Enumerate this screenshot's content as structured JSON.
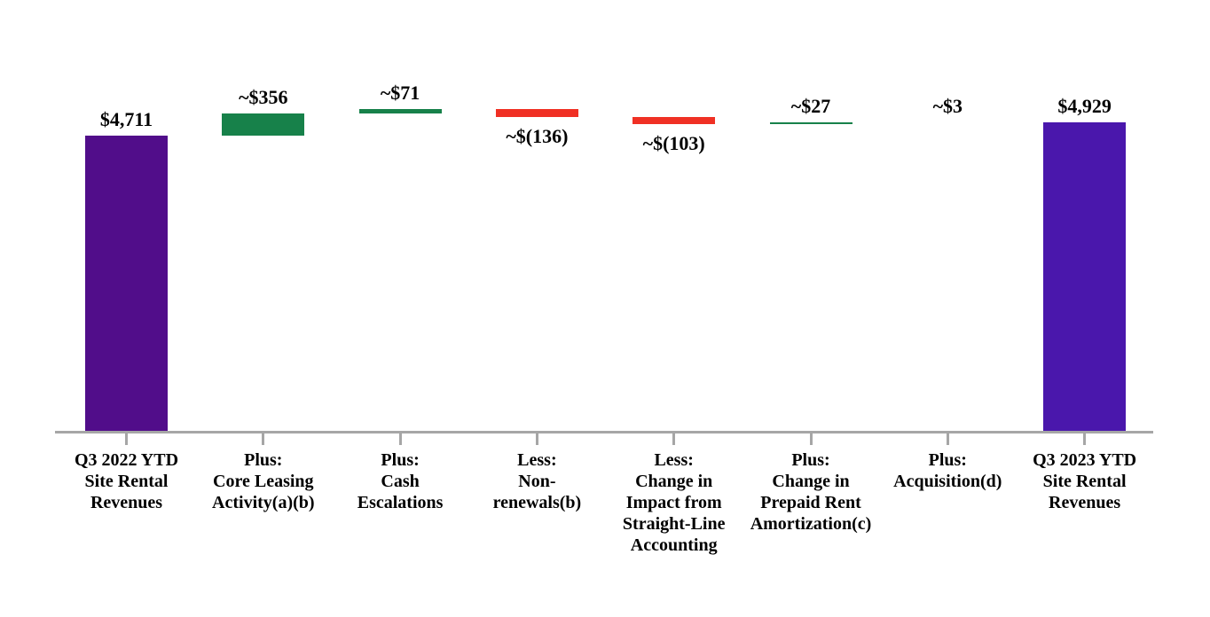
{
  "chart_data": {
    "type": "bar",
    "subtype": "waterfall",
    "title": "",
    "xlabel": "",
    "ylabel": "",
    "ylim": [
      0,
      5500
    ],
    "grid": false,
    "legend": false,
    "text_color": "#000000",
    "axis_color": "#A6A6A6",
    "steps": [
      {
        "category_lines": [
          "Q3 2022 YTD",
          "Site Rental",
          "Revenues"
        ],
        "value_label": "$4,711",
        "value": 4711,
        "kind": "total",
        "color": "#510D8A"
      },
      {
        "category_lines": [
          "Plus:",
          "Core Leasing",
          "Activity(a)(b)"
        ],
        "value_label": "~$356",
        "value": 356,
        "kind": "increase",
        "color": "#17814A"
      },
      {
        "category_lines": [
          "Plus:",
          "Cash",
          "Escalations"
        ],
        "value_label": "~$71",
        "value": 71,
        "kind": "increase",
        "color": "#17814A"
      },
      {
        "category_lines": [
          "Less:",
          "Non-",
          "renewals(b)"
        ],
        "value_label": "~$(136)",
        "value": -136,
        "kind": "decrease",
        "color": "#F03024"
      },
      {
        "category_lines": [
          "Less:",
          "Change in",
          "Impact from",
          "Straight-Line",
          "Accounting"
        ],
        "value_label": "~$(103)",
        "value": -103,
        "kind": "decrease",
        "color": "#F03024"
      },
      {
        "category_lines": [
          "Plus:",
          "Change in",
          "Prepaid Rent",
          "Amortization(c)"
        ],
        "value_label": "~$27",
        "value": 27,
        "kind": "increase",
        "color": "#17814A"
      },
      {
        "category_lines": [
          "Plus:",
          "Acquisition(d)"
        ],
        "value_label": "~$3",
        "value": 3,
        "kind": "increase",
        "color": "#17814A"
      },
      {
        "category_lines": [
          "Q3 2023 YTD",
          "Site Rental",
          "Revenues"
        ],
        "value_label": "$4,929",
        "value": 4929,
        "kind": "total",
        "color": "#4A17AC"
      }
    ]
  }
}
